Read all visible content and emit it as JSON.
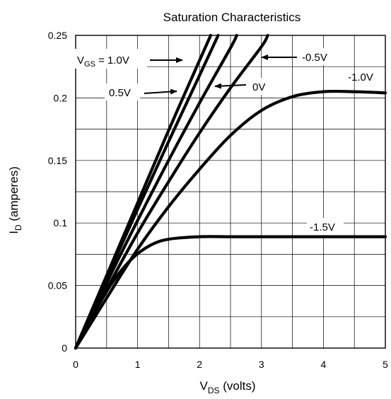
{
  "chart_data": {
    "type": "line",
    "title": "Saturation Characteristics",
    "xlabel": {
      "main": "V",
      "sub": "DS",
      "rest": " (volts)"
    },
    "ylabel": {
      "main": "I",
      "sub": "D",
      "rest": " (amperes)"
    },
    "xlim": [
      0,
      5
    ],
    "ylim": [
      0,
      0.25
    ],
    "x_ticks": [
      0,
      1,
      2,
      3,
      4,
      5
    ],
    "x_tick_labels": [
      "0",
      "1",
      "2",
      "3",
      "4",
      "5"
    ],
    "y_ticks": [
      0,
      0.05,
      0.1,
      0.15,
      0.2,
      0.25
    ],
    "y_tick_labels": [
      "0",
      "0.05",
      "0.1",
      "0.15",
      "0.2",
      "0.25"
    ],
    "grid": true,
    "series": [
      {
        "name": "1.0V",
        "x": [
          0,
          0.5,
          1.0,
          1.5,
          2.0,
          2.18
        ],
        "y": [
          0,
          0.058,
          0.116,
          0.174,
          0.23,
          0.25
        ]
      },
      {
        "name": "0.5V",
        "x": [
          0,
          0.5,
          1.0,
          1.5,
          2.0,
          2.3
        ],
        "y": [
          0,
          0.056,
          0.111,
          0.165,
          0.218,
          0.25
        ]
      },
      {
        "name": "0V",
        "x": [
          0,
          0.5,
          1.0,
          1.5,
          2.0,
          2.5,
          2.6
        ],
        "y": [
          0,
          0.052,
          0.102,
          0.15,
          0.196,
          0.24,
          0.25
        ]
      },
      {
        "name": "-0.5V",
        "x": [
          0,
          0.5,
          1.0,
          1.5,
          2.0,
          2.5,
          3.0,
          3.1
        ],
        "y": [
          0,
          0.047,
          0.092,
          0.133,
          0.172,
          0.208,
          0.241,
          0.25
        ]
      },
      {
        "name": "-1.0V",
        "x": [
          0,
          0.5,
          1.0,
          1.5,
          2.0,
          2.5,
          3.0,
          3.5,
          4.0,
          4.5,
          5.0
        ],
        "y": [
          0,
          0.04,
          0.079,
          0.113,
          0.143,
          0.17,
          0.19,
          0.201,
          0.205,
          0.205,
          0.204
        ]
      },
      {
        "name": "-1.5V",
        "x": [
          0,
          0.3,
          0.6,
          0.9,
          1.2,
          1.5,
          2.0,
          2.5,
          3.0,
          4.0,
          5.0
        ],
        "y": [
          0,
          0.028,
          0.053,
          0.071,
          0.082,
          0.087,
          0.089,
          0.089,
          0.089,
          0.089,
          0.089
        ]
      }
    ],
    "annotations": [
      {
        "text": "V",
        "sub": "GS",
        "rest": " = 1.0V"
      },
      {
        "text": "0.5V"
      },
      {
        "text": "0V"
      },
      {
        "text": "-0.5V"
      },
      {
        "text": "-1.0V"
      },
      {
        "text": "-1.5V"
      }
    ]
  }
}
